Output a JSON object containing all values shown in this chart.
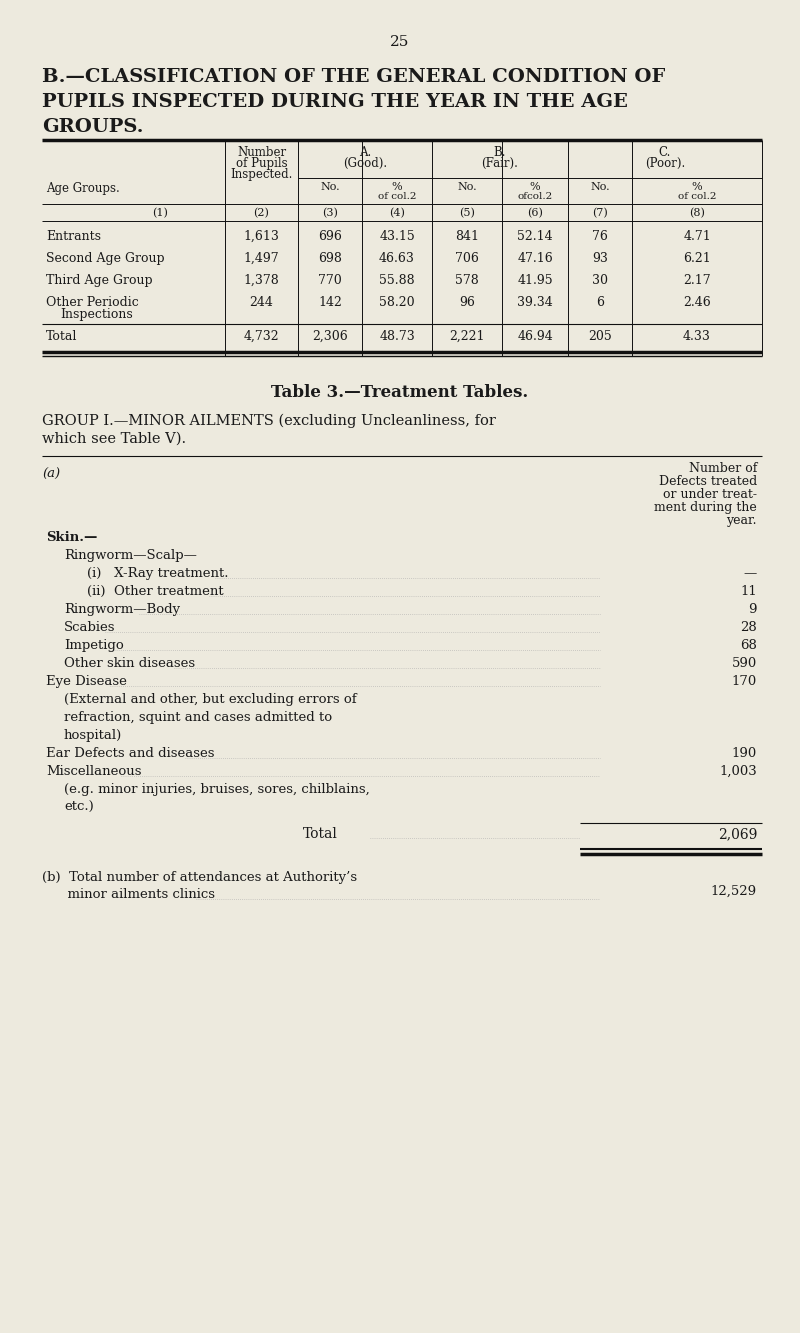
{
  "bg_color": "#edeade",
  "text_color": "#1a1a1a",
  "page_number": "25",
  "title_line1": "B.—CLASSIFICATION OF THE GENERAL CONDITION OF",
  "title_line2": "PUPILS INSPECTED DURING THE YEAR IN THE AGE",
  "title_line3": "GROUPS.",
  "table1_data": [
    [
      "Entrants",
      "1,613",
      "696",
      "43.15",
      "841",
      "52.14",
      "76",
      "4.71"
    ],
    [
      "Second Age Group",
      "1,497",
      "698",
      "46.63",
      "706",
      "47.16",
      "93",
      "6.21"
    ],
    [
      "Third Age Group",
      "1,378",
      "770",
      "55.88",
      "578",
      "41.95",
      "30",
      "2.17"
    ],
    [
      "Other Periodic\nInspections",
      "244",
      "142",
      "58.20",
      "96",
      "39.34",
      "6",
      "2.46"
    ],
    [
      "Total",
      "4,732",
      "2,306",
      "48.73",
      "2,221",
      "46.94",
      "205",
      "4.33"
    ]
  ],
  "table2_title": "Table 3.—Treatment Tables.",
  "group_heading_1": "GROUP I.—MINOR AILMENTS (excluding Uncleanliness, for",
  "group_heading_2": "which see Table V).",
  "table2_items": [
    {
      "indent": 0,
      "label": "Skin.—",
      "value": "",
      "bold": true,
      "skin_label": true
    },
    {
      "indent": 1,
      "label": "Ringworm—Scalp—",
      "value": "",
      "bold": false
    },
    {
      "indent": 2,
      "label": "(i)   X-Ray treatment.",
      "value": "—",
      "bold": false
    },
    {
      "indent": 2,
      "label": "(ii)  Other treatment",
      "value": "11",
      "bold": false
    },
    {
      "indent": 1,
      "label": "Ringworm—Body",
      "value": "9",
      "bold": false
    },
    {
      "indent": 1,
      "label": "Scabies",
      "value": "28",
      "bold": false
    },
    {
      "indent": 1,
      "label": "Impetigo",
      "value": "68",
      "bold": false
    },
    {
      "indent": 1,
      "label": "Other skin diseases",
      "value": "590",
      "bold": false
    },
    {
      "indent": 0,
      "label": "Eye Disease",
      "value": "170",
      "bold": false
    },
    {
      "indent": 1,
      "label": "(External and other, but excluding errors of",
      "value": "",
      "bold": false
    },
    {
      "indent": 1,
      "label": "refraction, squint and cases admitted to",
      "value": "",
      "bold": false
    },
    {
      "indent": 1,
      "label": "hospital)",
      "value": "",
      "bold": false
    },
    {
      "indent": 0,
      "label": "Ear Defects and diseases",
      "value": "190",
      "bold": false
    },
    {
      "indent": 0,
      "label": "Miscellaneous",
      "value": "1,003",
      "bold": false
    },
    {
      "indent": 1,
      "label": "(e.g. minor injuries, bruises, sores, chilblains,",
      "value": "",
      "bold": false
    },
    {
      "indent": 1,
      "label": "etc.)",
      "value": "",
      "bold": false
    }
  ],
  "table2_total_label": "Total",
  "table2_total_value": "2,069",
  "table2_b_line1": "(b)  Total number of attendances at Authority’s",
  "table2_b_line2": "      minor ailments clinics",
  "table2_b_value": "12,529"
}
